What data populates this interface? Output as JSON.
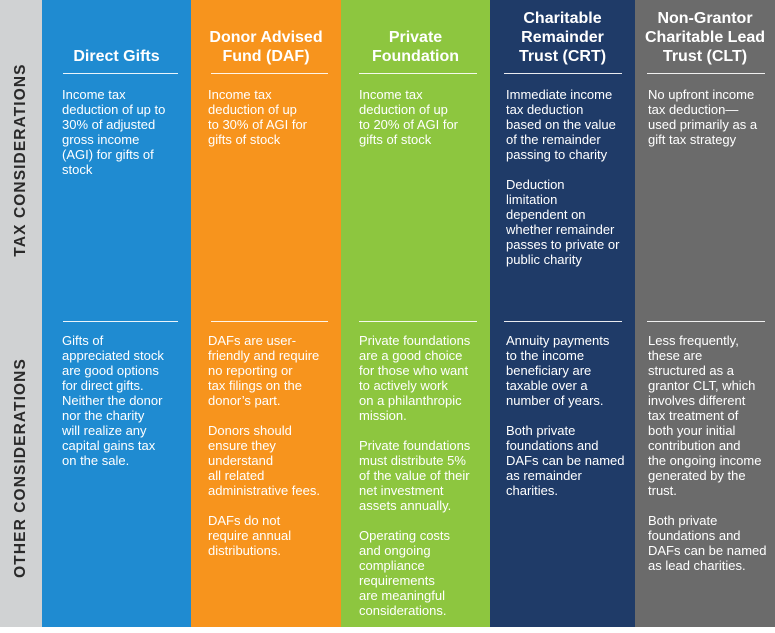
{
  "row_labels": {
    "tax": "TAX CONSIDERATIONS",
    "other": "OTHER CONSIDERATIONS"
  },
  "columns": [
    {
      "id": "direct-gifts",
      "color": "#1f8bd1",
      "header": [
        "Direct Gifts"
      ],
      "tax": [
        [
          "Income tax",
          "deduction of up to",
          "30% of adjusted",
          "gross income",
          "(AGI) for gifts of",
          "stock"
        ]
      ],
      "other": [
        [
          "Gifts of",
          "appreciated stock",
          "are good options",
          "for direct gifts.",
          "Neither the donor",
          "nor the charity",
          "will realize any",
          "capital gains tax",
          "on the sale."
        ]
      ]
    },
    {
      "id": "daf",
      "color": "#f7941d",
      "header": [
        "Donor Advised",
        "Fund (DAF)"
      ],
      "tax": [
        [
          "Income tax",
          "deduction of up",
          "to 30% of AGI for",
          "gifts of stock"
        ]
      ],
      "other": [
        [
          "DAFs are user-",
          "friendly and require",
          "no reporting or",
          "tax filings on the",
          "donor’s part."
        ],
        [
          "Donors should",
          "ensure they",
          "understand",
          "all related",
          "administrative fees."
        ],
        [
          "DAFs do not",
          "require annual",
          "distributions."
        ]
      ]
    },
    {
      "id": "private-foundation",
      "color": "#8dc63f",
      "header": [
        "Private",
        "Foundation"
      ],
      "tax": [
        [
          "Income tax",
          "deduction of up",
          "to 20% of AGI for",
          "gifts of stock"
        ]
      ],
      "other": [
        [
          "Private foundations",
          "are a good choice",
          "for those who want",
          "to actively work",
          "on a philanthropic",
          "mission."
        ],
        [
          "Private foundations",
          "must distribute 5%",
          "of the value of their",
          "net investment",
          "assets annually."
        ],
        [
          "Operating costs",
          "and ongoing",
          "compliance",
          "requirements",
          "are meaningful",
          "considerations."
        ]
      ]
    },
    {
      "id": "crt",
      "color": "#1f3b68",
      "header": [
        "Charitable",
        "Remainder",
        "Trust (CRT)"
      ],
      "tax": [
        [
          "Immediate income",
          "tax deduction",
          "based on the value",
          "of the remainder",
          "passing to charity"
        ],
        [
          "Deduction",
          "limitation",
          "dependent on",
          "whether remainder",
          "passes to private or",
          "public charity"
        ]
      ],
      "other": [
        [
          "Annuity payments",
          "to the income",
          "beneficiary are",
          "taxable over a",
          "number of years."
        ],
        [
          "Both private",
          "foundations and",
          "DAFs can be named",
          "as remainder",
          "charities."
        ]
      ]
    },
    {
      "id": "clt",
      "color": "#6b6b6b",
      "header": [
        "Non-Grantor",
        "Charitable Lead",
        "Trust (CLT)"
      ],
      "tax": [
        [
          "No upfront income",
          "tax deduction—",
          "used primarily as a",
          "gift tax strategy"
        ]
      ],
      "other": [
        [
          "Less frequently,",
          "these are",
          "structured as a",
          "grantor CLT, which",
          "involves different",
          "tax treatment of",
          "both your initial",
          "contribution and",
          "the ongoing income",
          "generated by the",
          "trust."
        ],
        [
          "Both private",
          "foundations and",
          "DAFs can be named",
          "as lead charities."
        ]
      ]
    }
  ]
}
